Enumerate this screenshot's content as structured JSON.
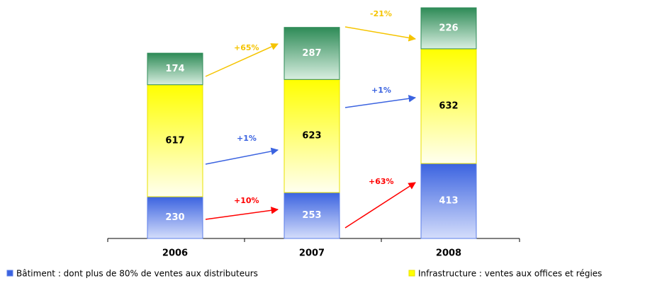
{
  "chart_data": {
    "type": "stacked-bar",
    "categories": [
      "2006",
      "2007",
      "2008"
    ],
    "series": [
      {
        "name": "Bâtiment : dont plus de 80% de ventes aux distributeurs",
        "color": "#3b63e0",
        "values": [
          230,
          253,
          413
        ]
      },
      {
        "name": "Infrastructure : ventes aux offices et régies",
        "color": "#ffff00",
        "values": [
          617,
          623,
          632
        ]
      },
      {
        "color": "#2e8b57",
        "values": [
          174,
          287,
          226
        ]
      }
    ],
    "annotations": [
      {
        "text": "+65%",
        "color": "#f5c400"
      },
      {
        "text": "-21%",
        "color": "#f5c400"
      },
      {
        "text": "+1%",
        "color": "#3b63e0"
      },
      {
        "text": "+1%",
        "color": "#3b63e0"
      },
      {
        "text": "+10%",
        "color": "#ff0000"
      },
      {
        "text": "+63%",
        "color": "#ff0000"
      }
    ]
  }
}
